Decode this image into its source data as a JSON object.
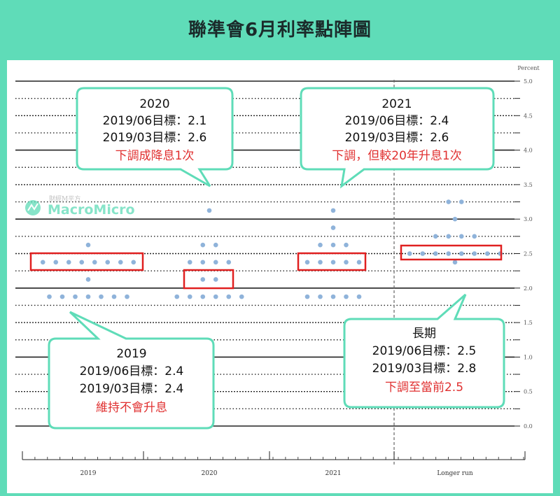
{
  "title": "聯準會6月利率點陣圖",
  "watermark": {
    "brand": "MacroMicro",
    "sub": "財經M平方"
  },
  "colors": {
    "background": "#5fdcb8",
    "dot": "#8fb3da",
    "box": "#e02020",
    "accent_text": "#e03030",
    "callout_border": "#5fdcb8"
  },
  "chart_data": {
    "type": "scatter",
    "ylabel": "Percent",
    "ylim": [
      0,
      5.0
    ],
    "yticks": [
      "0.0",
      "0.5",
      "1.0",
      "1.5",
      "2.0",
      "2.5",
      "3.0",
      "3.5",
      "4.0",
      "4.5",
      "5.0"
    ],
    "categories": [
      "2019",
      "2020",
      "2021",
      "Longer run"
    ],
    "dots": [
      {
        "category": "2019",
        "levels": [
          {
            "rate": 2.625,
            "count": 1
          },
          {
            "rate": 2.375,
            "count": 8
          },
          {
            "rate": 2.125,
            "count": 1
          },
          {
            "rate": 1.875,
            "count": 7
          }
        ]
      },
      {
        "category": "2020",
        "levels": [
          {
            "rate": 3.125,
            "count": 1
          },
          {
            "rate": 2.625,
            "count": 2
          },
          {
            "rate": 2.375,
            "count": 4
          },
          {
            "rate": 2.125,
            "count": 2
          },
          {
            "rate": 1.875,
            "count": 6
          }
        ]
      },
      {
        "category": "2021",
        "levels": [
          {
            "rate": 3.125,
            "count": 1
          },
          {
            "rate": 2.875,
            "count": 1
          },
          {
            "rate": 2.625,
            "count": 3
          },
          {
            "rate": 2.375,
            "count": 5
          },
          {
            "rate": 1.875,
            "count": 5
          }
        ]
      },
      {
        "category": "Longer run",
        "levels": [
          {
            "rate": 3.25,
            "count": 2
          },
          {
            "rate": 3.0,
            "count": 1
          },
          {
            "rate": 2.75,
            "count": 4
          },
          {
            "rate": 2.5,
            "count": 8
          },
          {
            "rate": 2.375,
            "count": 1
          }
        ]
      }
    ]
  },
  "callouts": [
    {
      "id": "c2020",
      "lines": [
        "2020",
        "2019/06目標：2.1",
        "2019/03目標：2.6"
      ],
      "note": "下調成降息1次"
    },
    {
      "id": "c2021",
      "lines": [
        "2021",
        "2019/06目標：2.4",
        "2019/03目標：2.6"
      ],
      "note": "下調，但較20年升息1次"
    },
    {
      "id": "c2019",
      "lines": [
        "2019",
        "2019/06目標：2.4",
        "2019/03目標：2.4"
      ],
      "note": "維持不會升息"
    },
    {
      "id": "clong",
      "lines": [
        "長期",
        "2019/06目標：2.5",
        "2019/03目標：2.8"
      ],
      "note": "下調至當前2.5"
    }
  ]
}
